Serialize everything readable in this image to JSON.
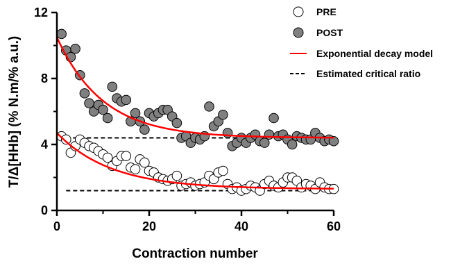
{
  "chart_data": {
    "type": "scatter",
    "title": "",
    "xlabel": "Contraction number",
    "ylabel": "T/Δ[HHb] (% N.m/% a.u.)",
    "xlim": [
      0,
      60
    ],
    "ylim": [
      0,
      12
    ],
    "xticks": [
      0,
      20,
      40,
      60
    ],
    "yticks": [
      0,
      4,
      8,
      12
    ],
    "grid": false,
    "legend_position": "top-right",
    "series": [
      {
        "name": "PRE",
        "marker": "open-circle",
        "color": "#000000",
        "x": [
          1,
          2,
          3,
          4,
          5,
          6,
          7,
          8,
          9,
          10,
          11,
          12,
          13,
          14,
          15,
          16,
          17,
          18,
          19,
          20,
          21,
          22,
          23,
          24,
          25,
          26,
          27,
          28,
          29,
          30,
          31,
          32,
          33,
          34,
          35,
          36,
          37,
          38,
          39,
          40,
          41,
          42,
          43,
          44,
          45,
          46,
          47,
          48,
          49,
          50,
          51,
          52,
          53,
          54,
          55,
          56,
          57,
          58,
          59,
          60
        ],
        "y": [
          4.5,
          4.3,
          3.5,
          3.9,
          4.3,
          4.1,
          3.9,
          3.8,
          3.6,
          3.4,
          3.2,
          2.7,
          3.0,
          3.3,
          3.3,
          2.6,
          2.5,
          3.1,
          2.9,
          2.4,
          2.3,
          2.0,
          1.9,
          1.8,
          1.9,
          2.1,
          1.5,
          1.6,
          1.7,
          1.5,
          1.6,
          1.7,
          2.1,
          1.9,
          2.3,
          2.4,
          1.6,
          1.3,
          1.4,
          1.2,
          1.3,
          1.5,
          1.4,
          1.2,
          1.6,
          1.8,
          1.5,
          1.4,
          1.7,
          2.0,
          2.0,
          1.8,
          1.4,
          1.6,
          1.5,
          1.3,
          1.7,
          1.4,
          1.3,
          1.3
        ]
      },
      {
        "name": "POST",
        "marker": "filled-circle",
        "color": "#808080",
        "x": [
          1,
          2,
          3,
          4,
          5,
          6,
          7,
          8,
          9,
          10,
          11,
          12,
          13,
          14,
          15,
          16,
          17,
          18,
          19,
          20,
          21,
          22,
          23,
          24,
          25,
          26,
          27,
          28,
          29,
          30,
          31,
          32,
          33,
          34,
          35,
          36,
          37,
          38,
          39,
          40,
          41,
          42,
          43,
          44,
          45,
          46,
          47,
          48,
          49,
          50,
          51,
          52,
          53,
          54,
          55,
          56,
          57,
          58,
          59,
          60
        ],
        "y": [
          10.7,
          9.7,
          9.3,
          9.8,
          8.2,
          7.1,
          6.5,
          6.0,
          6.4,
          6.1,
          5.6,
          7.5,
          6.8,
          6.6,
          6.7,
          5.4,
          5.9,
          5.4,
          4.9,
          5.9,
          5.7,
          5.9,
          6.1,
          6.1,
          5.7,
          5.3,
          4.4,
          4.5,
          4.1,
          4.4,
          4.3,
          4.5,
          6.3,
          5.1,
          5.4,
          5.8,
          4.7,
          3.9,
          4.1,
          4.4,
          4.1,
          4.4,
          4.6,
          4.2,
          4.1,
          4.6,
          5.6,
          4.5,
          4.6,
          4.3,
          4.0,
          4.5,
          4.4,
          4.3,
          4.3,
          4.7,
          4.4,
          4.2,
          4.3,
          4.2
        ]
      },
      {
        "name": "Exponential decay model",
        "style": "line",
        "color": "#ff0000",
        "fits": [
          {
            "y0": 10.5,
            "plateau": 4.4,
            "k": 0.1
          },
          {
            "y0": 4.7,
            "plateau": 1.3,
            "k": 0.085
          }
        ]
      },
      {
        "name": "Estimated critical ratio",
        "style": "dashed",
        "color": "#000000",
        "levels": [
          4.4,
          1.2
        ],
        "x_range": [
          2,
          60
        ]
      }
    ]
  }
}
